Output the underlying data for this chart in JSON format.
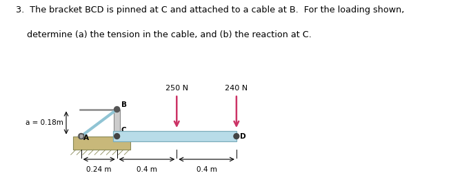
{
  "title_line1": "3.  The bracket BCD is pinned at C and attached to a cable at B.  For the loading shown,",
  "title_line2": "    determine (a) the tension in the cable, and (b) the reaction at C.",
  "bg_color": "#ffffff",
  "text_color": "#000000",
  "force_color": "#cc3366",
  "beam_color_face": "#b8dce8",
  "beam_color_edge": "#7aacba",
  "cable_color": "#90c4d4",
  "wall_fill": "#c8b87a",
  "wall_edge": "#888855",
  "post_fill": "#cccccc",
  "post_edge": "#888888",
  "force1_label": "250 N",
  "force2_label": "240 N",
  "label_a": "a = 0.18m",
  "label_024": "0.24 m",
  "label_04_1": "0.4 m",
  "label_04_2": "0.4 m",
  "label_A": "A",
  "label_B": "B",
  "label_C": "C",
  "label_D": "D",
  "fig_w": 6.7,
  "fig_h": 2.77,
  "dpi": 100
}
